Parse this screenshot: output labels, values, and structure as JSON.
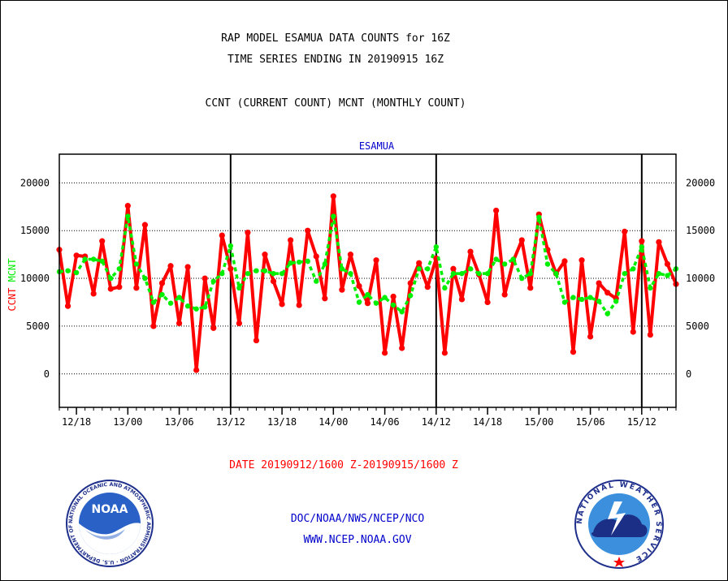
{
  "title_line1": "RAP MODEL ESAMUA DATA COUNTS for 16Z",
  "title_line2": "TIME SERIES ENDING IN 20190915 16Z",
  "subtitle": "CCNT (CURRENT COUNT) MCNT (MONTHLY COUNT)",
  "date_range": "DATE 20190912/1600 Z-20190915/1600 Z",
  "footer_line1": "DOC/NOAA/NWS/NCEP/NCO",
  "footer_line2": "WWW.NCEP.NOAA.GOV",
  "logos": {
    "left": "NOAA",
    "left_ring": "NATIONAL OCEANIC AND ATMOSPHERIC ADMINISTRATION · U.S. DEPARTMENT OF COMMERCE ·",
    "right_ring": "NATIONAL WEATHER SERVICE"
  },
  "colors": {
    "ccnt": "#ff0000",
    "mcnt": "#00ee00",
    "label_blue": "#0000cc"
  },
  "chart_data": {
    "type": "line",
    "title": "ESAMUA",
    "ylabel_parts": [
      "CCNT",
      "MCNT"
    ],
    "ylim": [
      -3500,
      23000
    ],
    "yticks": [
      0,
      5000,
      10000,
      15000,
      20000
    ],
    "ytick_labels": [
      "0",
      "5000",
      "10000",
      "15000",
      "20000"
    ],
    "xlim": [
      0,
      72
    ],
    "xticks": [
      {
        "x": 2,
        "label": "12/18"
      },
      {
        "x": 8,
        "label": "13/00"
      },
      {
        "x": 14,
        "label": "13/06"
      },
      {
        "x": 20,
        "label": "13/12"
      },
      {
        "x": 26,
        "label": "13/18"
      },
      {
        "x": 32,
        "label": "14/00"
      },
      {
        "x": 38,
        "label": "14/06"
      },
      {
        "x": 44,
        "label": "14/12"
      },
      {
        "x": 50,
        "label": "14/18"
      },
      {
        "x": 56,
        "label": "15/00"
      },
      {
        "x": 62,
        "label": "15/06"
      },
      {
        "x": 68,
        "label": "15/12"
      }
    ],
    "day_markers": [
      20,
      44,
      68
    ],
    "grid": "horizontal",
    "series": [
      {
        "name": "CCNT",
        "values": [
          13000,
          7100,
          12400,
          12300,
          8400,
          13900,
          8900,
          9100,
          17600,
          9000,
          15600,
          5000,
          9500,
          11300,
          5300,
          11200,
          400,
          10000,
          4800,
          14500,
          11000,
          5300,
          14800,
          3500,
          12500,
          9700,
          7300,
          14000,
          7200,
          15000,
          12300,
          7900,
          18600,
          8800,
          12500,
          9200,
          7400,
          11900,
          2200,
          8100,
          2700,
          9500,
          11600,
          9100,
          12100,
          2200,
          11000,
          7800,
          12800,
          10400,
          7500,
          17100,
          8300,
          11800,
          14000,
          9000,
          16700,
          13000,
          10500,
          11800,
          2300,
          11900,
          3900,
          9500,
          8500,
          7900,
          14900,
          4400,
          13900,
          4100,
          13800,
          11500,
          9400
        ]
      },
      {
        "name": "MCNT",
        "values": [
          10700,
          10800,
          10600,
          12000,
          12000,
          11800,
          10000,
          11000,
          16500,
          11500,
          10000,
          7500,
          8300,
          7400,
          8000,
          7100,
          6800,
          7000,
          9700,
          10500,
          13400,
          9000,
          10500,
          10800,
          10800,
          10500,
          10500,
          11600,
          11700,
          11800,
          9700,
          11500,
          16500,
          11000,
          10500,
          7500,
          8300,
          7400,
          8000,
          7200,
          6500,
          8200,
          11000,
          11000,
          13300,
          9000,
          10500,
          10500,
          11000,
          10500,
          10500,
          12000,
          11500,
          12000,
          10000,
          10500,
          16400,
          11500,
          10500,
          7500,
          8000,
          7800,
          8000,
          7600,
          6300,
          7600,
          10500,
          11000,
          13300,
          9000,
          10500,
          10300,
          11000
        ]
      }
    ]
  }
}
